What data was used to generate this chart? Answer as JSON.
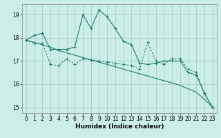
{
  "title": "",
  "xlabel": "Humidex (Indice chaleur)",
  "bg_color": "#cceee8",
  "grid_color": "#aacccc",
  "line_color": "#1a7a6a",
  "x_values": [
    0,
    1,
    2,
    3,
    4,
    5,
    6,
    7,
    8,
    9,
    10,
    11,
    12,
    13,
    14,
    15,
    16,
    17,
    18,
    19,
    20,
    21,
    22,
    23
  ],
  "line1_solid_markers": [
    17.9,
    18.1,
    18.2,
    17.5,
    17.5,
    17.5,
    17.6,
    19.0,
    18.4,
    19.2,
    18.9,
    18.4,
    17.85,
    17.7,
    16.9,
    16.85,
    16.9,
    17.0,
    17.0,
    17.0,
    16.5,
    16.4,
    15.6,
    15.0
  ],
  "line2_solid": [
    17.9,
    17.8,
    17.7,
    17.6,
    17.45,
    17.35,
    17.25,
    17.15,
    17.05,
    16.95,
    16.85,
    16.75,
    16.65,
    16.55,
    16.45,
    16.35,
    16.25,
    16.15,
    16.05,
    15.95,
    15.8,
    15.65,
    15.35,
    15.0
  ],
  "line3_dotted_markers": [
    17.9,
    17.75,
    17.75,
    16.85,
    16.8,
    17.1,
    16.85,
    17.1,
    17.05,
    17.0,
    16.95,
    16.9,
    16.85,
    16.8,
    16.65,
    17.8,
    17.0,
    16.85,
    17.1,
    17.1,
    16.65,
    16.5,
    15.6,
    15.0
  ],
  "ylim": [
    14.75,
    19.45
  ],
  "yticks": [
    15,
    16,
    17,
    18,
    19
  ],
  "xticks": [
    0,
    1,
    2,
    3,
    4,
    5,
    6,
    7,
    8,
    9,
    10,
    11,
    12,
    13,
    14,
    15,
    16,
    17,
    18,
    19,
    20,
    21,
    22,
    23
  ]
}
